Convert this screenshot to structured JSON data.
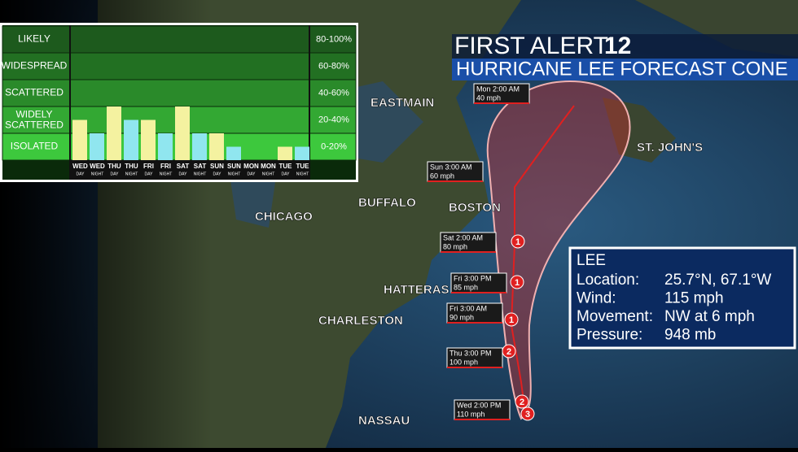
{
  "header": {
    "brand": "FIRST ALERT",
    "channel": "12",
    "title": "HURRICANE LEE FORECAST CONE"
  },
  "rain_chart": {
    "levels": [
      {
        "label": "LIKELY",
        "range": "80-100%"
      },
      {
        "label": "WIDESPREAD",
        "range": "60-80%"
      },
      {
        "label": "SCATTERED",
        "range": "40-60%"
      },
      {
        "label": "WIDELY SCATTERED",
        "range": "20-40%"
      },
      {
        "label": "ISOLATED",
        "range": "0-20%"
      }
    ],
    "ylim": [
      0,
      100
    ],
    "days": [
      "WED",
      "WED",
      "THU",
      "THU",
      "FRI",
      "FRI",
      "SAT",
      "SAT",
      "SUN",
      "SUN",
      "MON",
      "MON",
      "TUE",
      "TUE"
    ],
    "periods": [
      "DAY",
      "NIGHT",
      "DAY",
      "NIGHT",
      "DAY",
      "NIGHT",
      "DAY",
      "NIGHT",
      "DAY",
      "NIGHT",
      "DAY",
      "NIGHT",
      "DAY",
      "NIGHT"
    ],
    "values": [
      30,
      20,
      40,
      30,
      30,
      20,
      40,
      20,
      20,
      10,
      0,
      0,
      10,
      10
    ]
  },
  "cities": [
    "EASTMAIN",
    "ST. JOHN'S",
    "BUFFALO",
    "BOSTON",
    "CHICAGO",
    "HATTERAS",
    "CHARLESTON",
    "NASSAU"
  ],
  "forecast_points": [
    {
      "time": "Mon 2:00 AM",
      "wind": "40 mph"
    },
    {
      "time": "Sun 3:00 AM",
      "wind": "60 mph"
    },
    {
      "time": "Sat 2:00 AM",
      "wind": "80 mph"
    },
    {
      "time": "Fri 3:00 PM",
      "wind": "85 mph"
    },
    {
      "time": "Fri 3:00 AM",
      "wind": "90 mph"
    },
    {
      "time": "Thu 3:00 PM",
      "wind": "100 mph"
    },
    {
      "time": "Wed 2:00 PM",
      "wind": "110 mph"
    }
  ],
  "track_categories": [
    "1",
    "1",
    "1",
    "2",
    "2",
    "3"
  ],
  "storm_info": {
    "name": "LEE",
    "rows": [
      {
        "label": "Location:",
        "value": "25.7°N, 67.1°W"
      },
      {
        "label": "Wind:",
        "value": "115 mph"
      },
      {
        "label": "Movement:",
        "value": "NW at 6 mph"
      },
      {
        "label": "Pressure:",
        "value": "948 mb"
      }
    ]
  }
}
